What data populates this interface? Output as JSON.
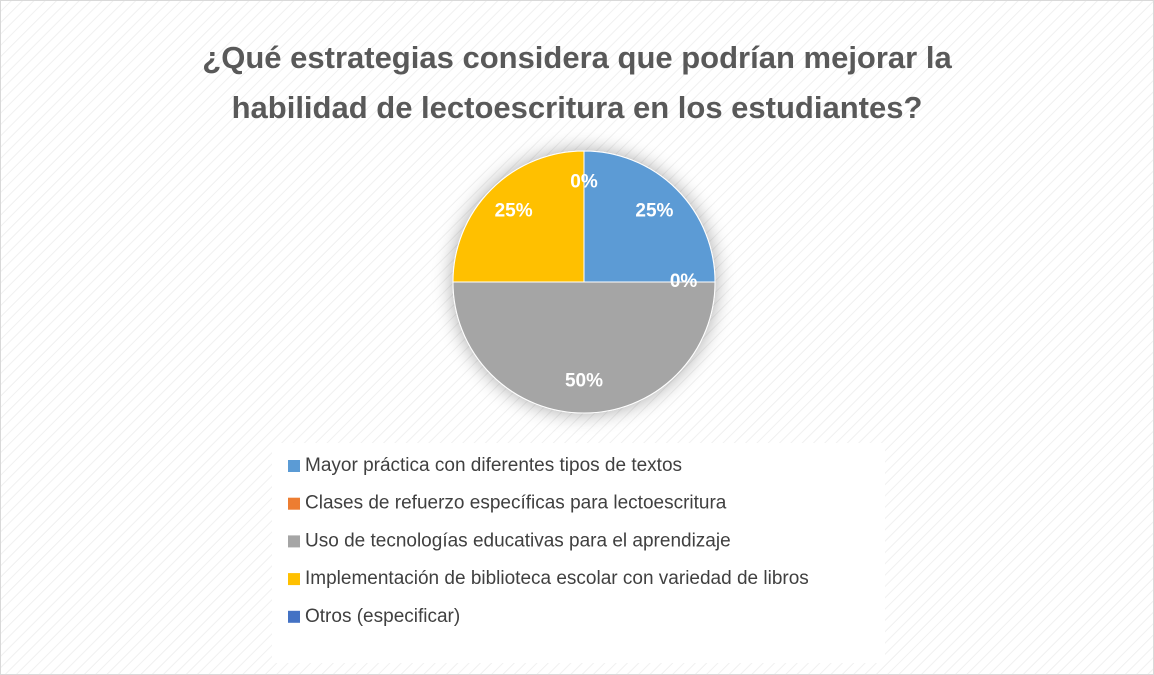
{
  "chart_data": {
    "type": "pie",
    "title": [
      "¿Qué estrategias considera que podrían mejorar la",
      "habilidad de lectoescritura en los estudiantes?"
    ],
    "categories": [
      "Mayor práctica con diferentes tipos de textos",
      "Clases de refuerzo específicas para lectoescritura",
      "Uso de tecnologías educativas para el aprendizaje",
      "Implementación de biblioteca escolar con variedad de libros",
      "Otros (especificar)"
    ],
    "values": [
      25,
      0,
      50,
      25,
      0
    ],
    "value_labels": [
      "25%",
      "0%",
      "50%",
      "25%",
      "0%"
    ],
    "colors": [
      "#5b9bd5",
      "#ed7d31",
      "#a5a5a5",
      "#ffc000",
      "#4472c4"
    ],
    "legend": "bottom"
  }
}
